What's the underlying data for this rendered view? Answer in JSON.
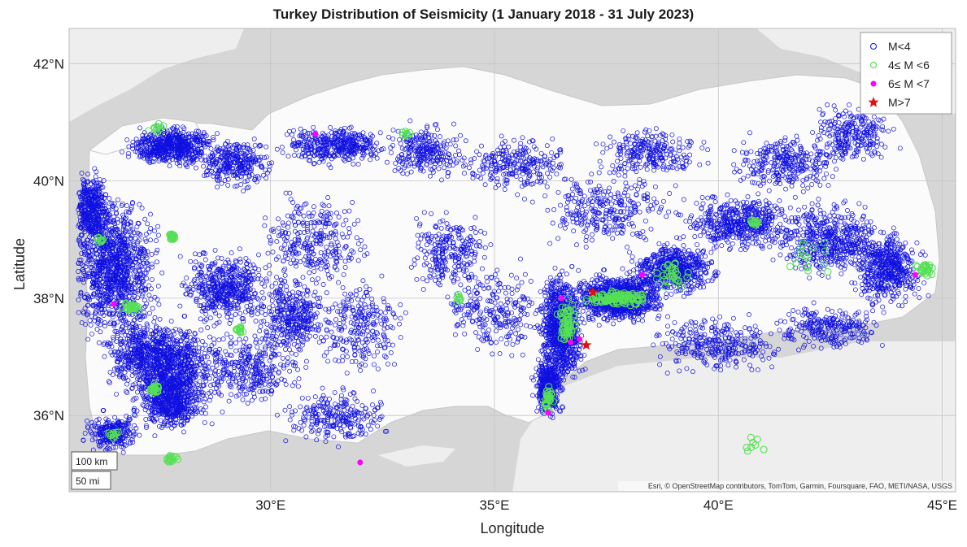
{
  "title": "Turkey Distribution of Seismicity (1 January 2018 - 31 July 2023)",
  "chart_data": {
    "type": "scatter",
    "title": "Turkey Distribution of Seismicity (1 January 2018 - 31 July 2023)",
    "xlabel": "Longitude",
    "ylabel": "Latitude",
    "xlim": [
      25.5,
      45.3
    ],
    "ylim": [
      34.7,
      42.6
    ],
    "x_ticks": [
      {
        "value": 30,
        "label": "30°E"
      },
      {
        "value": 35,
        "label": "35°E"
      },
      {
        "value": 40,
        "label": "40°E"
      },
      {
        "value": 45,
        "label": "45°E"
      }
    ],
    "y_ticks": [
      {
        "value": 36,
        "label": "36°N"
      },
      {
        "value": 38,
        "label": "38°N"
      },
      {
        "value": 40,
        "label": "40°N"
      },
      {
        "value": 42,
        "label": "42°N"
      }
    ],
    "grid": true,
    "legend_position": "top-right",
    "legend": [
      {
        "label": "M<4",
        "marker": "open-circle",
        "color": "#1010e0"
      },
      {
        "label": "4≤ M <6",
        "marker": "open-circle",
        "color": "#55e055"
      },
      {
        "label": "6≤ M <7",
        "marker": "filled-circle",
        "color": "#ff00ff"
      },
      {
        "label": "M>7",
        "marker": "star",
        "color": "#e01010"
      }
    ],
    "series": [
      {
        "name": "6≤ M <7",
        "points": [
          [
            26.5,
            37.9
          ],
          [
            31.0,
            40.8
          ],
          [
            36.5,
            38.0
          ],
          [
            38.3,
            38.4
          ],
          [
            36.7,
            37.25
          ],
          [
            36.2,
            36.05
          ],
          [
            32.0,
            35.2
          ],
          [
            44.4,
            38.4
          ],
          [
            36.9,
            37.3
          ]
        ]
      },
      {
        "name": "M>7",
        "points": [
          [
            37.2,
            38.1
          ],
          [
            37.05,
            37.2
          ]
        ]
      }
    ]
  },
  "scale_bar": {
    "km_label": "100 km",
    "mi_label": "50 mi"
  },
  "attribution": "Esri, © OpenStreetMap contributors, TomTom, Garmin, Foursquare, FAO, METI/NASA, USGS",
  "colors": {
    "water": "#d6d6d6",
    "land": "#eeeeee",
    "turkey": "#fbfbfb",
    "small_quake": "#1010e0",
    "moderate_quake": "#55e055",
    "strong_quake": "#ff00ff",
    "major_quake": "#e01010"
  }
}
